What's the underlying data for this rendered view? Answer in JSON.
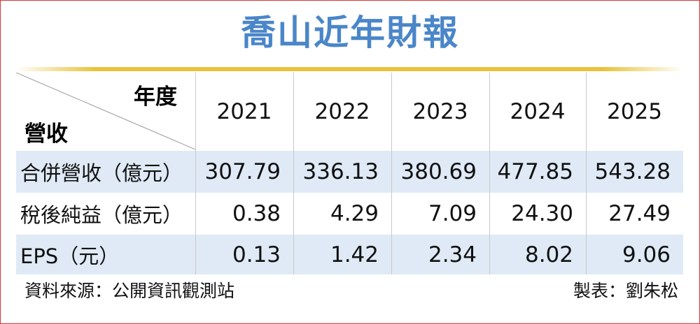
{
  "header": {
    "title": "喬山近年財報"
  },
  "table": {
    "corner_top": "年度",
    "corner_bottom": "營收",
    "columns": [
      "2021",
      "2022",
      "2023",
      "2024",
      "2025"
    ],
    "rows": [
      [
        "合併營收（億元）",
        "307.79",
        "336.13",
        "380.69",
        "477.85",
        "543.28"
      ],
      [
        "稅後純益（億元）",
        "0.38",
        "4.29",
        "7.09",
        "24.30",
        "27.49"
      ],
      [
        "EPS（元）",
        "0.13",
        "1.42",
        "2.34",
        "8.02",
        "9.06"
      ]
    ]
  },
  "footer": {
    "source": "資料來源：公開資訊觀測站",
    "credit": "製表：劉朱松"
  }
}
